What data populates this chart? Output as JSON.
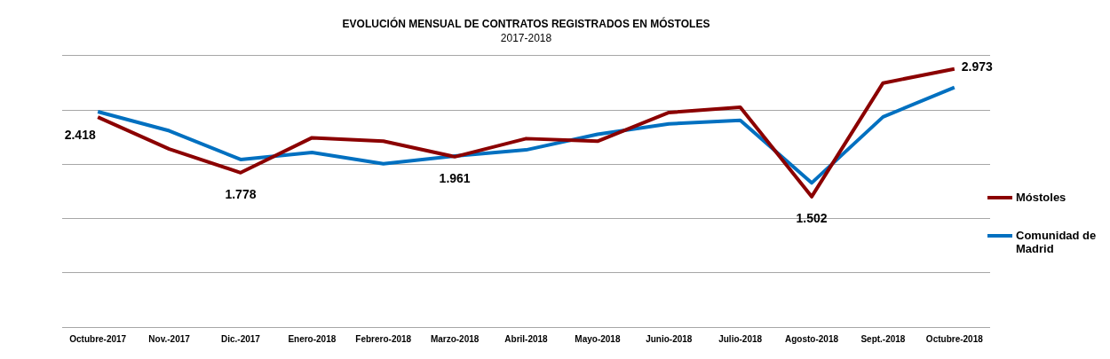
{
  "chart_data": {
    "type": "line",
    "title": "EVOLUCIÓN MENSUAL DE CONTRATOS REGISTRADOS EN MÓSTOLES",
    "subtitle": "2017-2018",
    "categories": [
      "Octubre-2017",
      "Nov.-2017",
      "Dic.-2017",
      "Enero-2018",
      "Febrero-2018",
      "Marzo-2018",
      "Abril-2018",
      "Mayo-2018",
      "Junio-2018",
      "Julio-2018",
      "Agosto-2018",
      "Sept.-2018",
      "Octubre-2018"
    ],
    "series": [
      {
        "name": "Móstoles",
        "color": "#8b0000",
        "values": [
          2418,
          2050,
          1778,
          2180,
          2140,
          1961,
          2170,
          2140,
          2470,
          2530,
          1502,
          2810,
          2973
        ],
        "value_labels": [
          "2.418",
          null,
          "1.778",
          null,
          null,
          "1.961",
          null,
          null,
          null,
          null,
          "1.502",
          null,
          "2.973"
        ]
      },
      {
        "name": "Comunidad de Madrid",
        "color": "#0070c0",
        "values": [
          2480,
          2260,
          1930,
          2010,
          1880,
          1970,
          2040,
          2220,
          2340,
          2380,
          1660,
          2420,
          2760
        ]
      }
    ],
    "ylim": [
      0,
      3125
    ],
    "yticks": [
      {
        "value": 0,
        "label": null
      },
      {
        "value": 625,
        "label": null
      },
      {
        "value": 1250,
        "label": null
      },
      {
        "value": 1875,
        "label": null
      },
      {
        "value": 2500,
        "label": null
      },
      {
        "value": 3125,
        "label": null
      }
    ],
    "tick_labels": "x",
    "grid": "y",
    "legend": "right",
    "marker": "none",
    "line_style": "solid"
  }
}
